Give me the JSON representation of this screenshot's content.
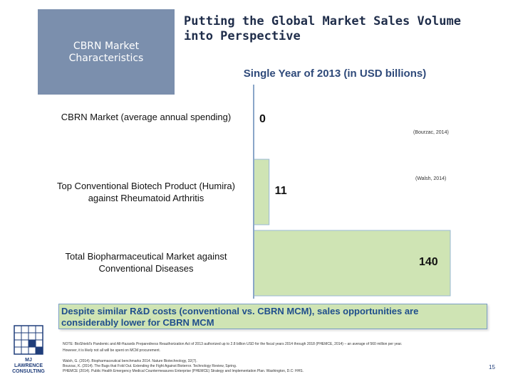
{
  "sidebar": {
    "label": "CBRN Market Characteristics"
  },
  "header": {
    "title_line1": "Putting the Global Market Sales Volume",
    "title_line2": "into Perspective"
  },
  "chart_data": {
    "type": "bar",
    "orientation": "horizontal",
    "title": "Single Year of 2013 (in USD billions)",
    "categories": [
      "CBRN Market (average annual spending)",
      "Top Conventional Biotech Product (Humira) against Rheumatoid Arthritis",
      "Total Biopharmaceutical Market against Conventional Diseases"
    ],
    "values": [
      0,
      11,
      140
    ],
    "value_labels": [
      "0",
      "11",
      "140"
    ],
    "sources": [
      "(Bourzac, 2014)",
      "(Walsh, 2014)",
      ""
    ],
    "xlim": [
      0,
      140
    ],
    "grid": false,
    "legend": "none",
    "colors": {
      "bar_fill": "#cfe4b4",
      "bar_stroke": "#9ab8d6",
      "axis": "#8aa6c8"
    }
  },
  "callout": {
    "line1": "Despite similar R&D costs (conventional vs. CBRN MCM), sales opportunities are",
    "line2": "considerably lower for CBRN MCM"
  },
  "note": {
    "line1": "NOTE: BioShield's Pandemic and All-Hazards Preparedness Reauthorization Act of 2013 authorized up to 2.8 billion USD for the fiscal years 2014 through 2018 (PHEMCE, 2014) – an average of 560 million per year.",
    "line2": "However, it is likely not all will be spent on MCM procurement."
  },
  "references": [
    "Walsh, G. (2014). Biopharmaceutical benchmarks 2014. Nature Biotechnology, 32(7).",
    "Bourzac, K. (2014). The Bugs that Fold Out. Extending the Fight Against Bioterror. Technology Review, Spring.",
    "PHEMCE (2014). Public Health Emergency Medical Countermeasures Enterprise (PHEMCE) Strategy and Implementation Plan. Washington, D.C: HHS."
  ],
  "footer": {
    "logo_line1": "MJ",
    "logo_line2": "LAWRENCE",
    "logo_line3": "CONSULTING",
    "page_number": "15"
  }
}
